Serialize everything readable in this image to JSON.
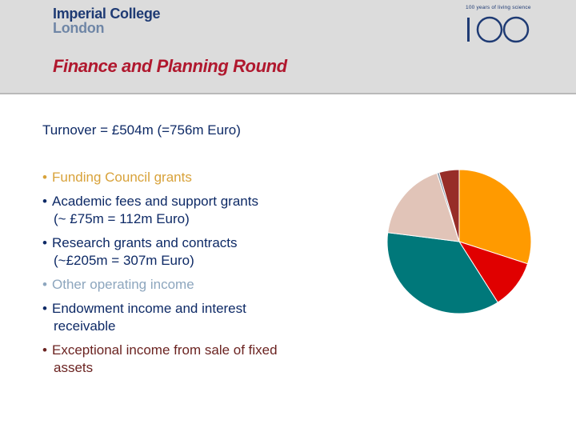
{
  "header": {
    "logo_line1": "Imperial College",
    "logo_line2": "London",
    "badge_caption": "100 years of living science",
    "badge_number": "100",
    "title": "Finance and Planning Round"
  },
  "turnover": "Turnover = £504m (=756m Euro)",
  "bullets": [
    {
      "main": "Funding Council grants",
      "sub": "",
      "color": "#d8a23a"
    },
    {
      "main": "Academic fees and support grants",
      "sub": "(~ £75m = 112m Euro)",
      "color": "#0e2a66"
    },
    {
      "main": "Research grants and contracts",
      "sub": "(~£205m = 307m Euro)",
      "color": "#0e2a66"
    },
    {
      "main": "Other operating income",
      "sub": "",
      "color": "#8da6be"
    },
    {
      "main": "Endowment income and interest",
      "sub": "receivable",
      "color": "#0e2a66"
    },
    {
      "main": "Exceptional income from sale of fixed",
      "sub": "assets",
      "color": "#6b2321"
    }
  ],
  "chart_data": {
    "type": "pie",
    "values": [
      30,
      11,
      36,
      18,
      0.5,
      4.5
    ],
    "colors": [
      "#ff9a00",
      "#e00000",
      "#00787a",
      "#e1c4b8",
      "#8899aa",
      "#972d28"
    ]
  }
}
